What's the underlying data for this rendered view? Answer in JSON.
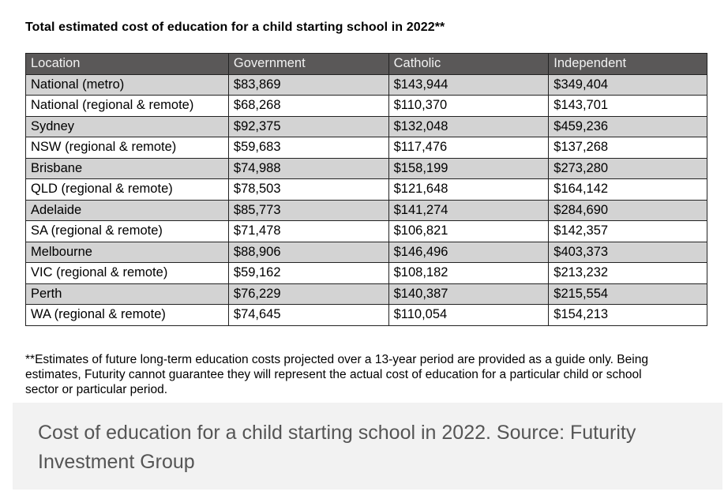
{
  "document": {
    "title": "Total estimated cost of education for a child starting school in 2022**",
    "table": {
      "headers": [
        "Location",
        "Government",
        "Catholic",
        "Independent"
      ],
      "rows": [
        [
          "National (metro)",
          "$83,869",
          "$143,944",
          "$349,404"
        ],
        [
          "National (regional & remote)",
          "$68,268",
          "$110,370",
          "$143,701"
        ],
        [
          "Sydney",
          "$92,375",
          "$132,048",
          "$459,236"
        ],
        [
          "NSW (regional & remote)",
          "$59,683",
          "$117,476",
          "$137,268"
        ],
        [
          "Brisbane",
          "$74,988",
          "$158,199",
          "$273,280"
        ],
        [
          "QLD (regional & remote)",
          "$78,503",
          "$121,648",
          "$164,142"
        ],
        [
          "Adelaide",
          "$85,773",
          "$141,274",
          "$284,690"
        ],
        [
          "SA (regional & remote)",
          "$71,478",
          "$106,821",
          "$142,357"
        ],
        [
          "Melbourne",
          "$88,906",
          "$146,496",
          "$403,373"
        ],
        [
          "VIC (regional & remote)",
          "$59,162",
          "$108,182",
          "$213,232"
        ],
        [
          "Perth",
          "$76,229",
          "$140,387",
          "$215,554"
        ],
        [
          "WA (regional & remote)",
          "$74,645",
          "$110,054",
          "$154,213"
        ]
      ]
    },
    "footnote": "**Estimates of future long-term education costs projected over a 13-year period are provided as a guide only. Being estimates, Futurity cannot guarantee they will represent the actual cost of education for a particular child or school sector or particular period."
  },
  "caption": "Cost of education for a child starting school in 2022. Source: Futurity Investment Group",
  "colors": {
    "header_bg": "#5a5858",
    "shaded_row_bg": "#d3d3d3",
    "caption_bg": "#f2f2f2",
    "caption_text": "#555555"
  }
}
